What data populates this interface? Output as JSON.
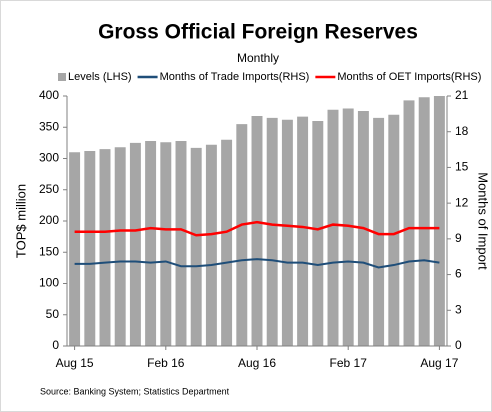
{
  "chart_data": {
    "type": "bar",
    "title": "Gross Official Foreign Reserves",
    "subtitle": "Monthly",
    "y_label": "TOP$ million",
    "y2_label": "Months of Import",
    "source": "Source: Banking System; Statistics Department",
    "categories": [
      "Aug 15",
      null,
      null,
      null,
      null,
      null,
      "Feb 16",
      null,
      null,
      null,
      null,
      null,
      "Aug 16",
      null,
      null,
      null,
      null,
      null,
      "Feb 17",
      null,
      null,
      null,
      null,
      null,
      "Aug 17"
    ],
    "series": [
      {
        "name": "Levels (LHS)",
        "type": "bar",
        "color": "#a6a6a6",
        "values": [
          310,
          312,
          315,
          318,
          325,
          328,
          326,
          328,
          317,
          322,
          330,
          355,
          368,
          365,
          362,
          367,
          360,
          378,
          380,
          376,
          365,
          370,
          393,
          398,
          400
        ]
      },
      {
        "name": "Months of Trade Imports(RHS)",
        "type": "line",
        "axis": "y2",
        "color": "#1f4e79",
        "values": [
          6.9,
          6.9,
          7.0,
          7.1,
          7.1,
          7.0,
          7.1,
          6.7,
          6.7,
          6.8,
          7.0,
          7.2,
          7.3,
          7.2,
          7.0,
          7.0,
          6.8,
          7.0,
          7.1,
          7.0,
          6.6,
          6.8,
          7.1,
          7.2,
          7.0
        ]
      },
      {
        "name": "Months of OET Imports(RHS)",
        "type": "line",
        "axis": "y2",
        "color": "#ff0000",
        "values": [
          9.6,
          9.6,
          9.6,
          9.7,
          9.7,
          9.9,
          9.8,
          9.8,
          9.3,
          9.4,
          9.6,
          10.2,
          10.4,
          10.2,
          10.1,
          10.0,
          9.8,
          10.2,
          10.1,
          9.9,
          9.4,
          9.4,
          9.9,
          9.9,
          9.9
        ]
      }
    ],
    "ylim": [
      0,
      400
    ],
    "yticks": [
      0,
      50,
      100,
      150,
      200,
      250,
      300,
      350,
      400
    ],
    "y2lim": [
      0,
      21
    ],
    "y2ticks": [
      0,
      3,
      6,
      9,
      12,
      15,
      18,
      21
    ]
  }
}
